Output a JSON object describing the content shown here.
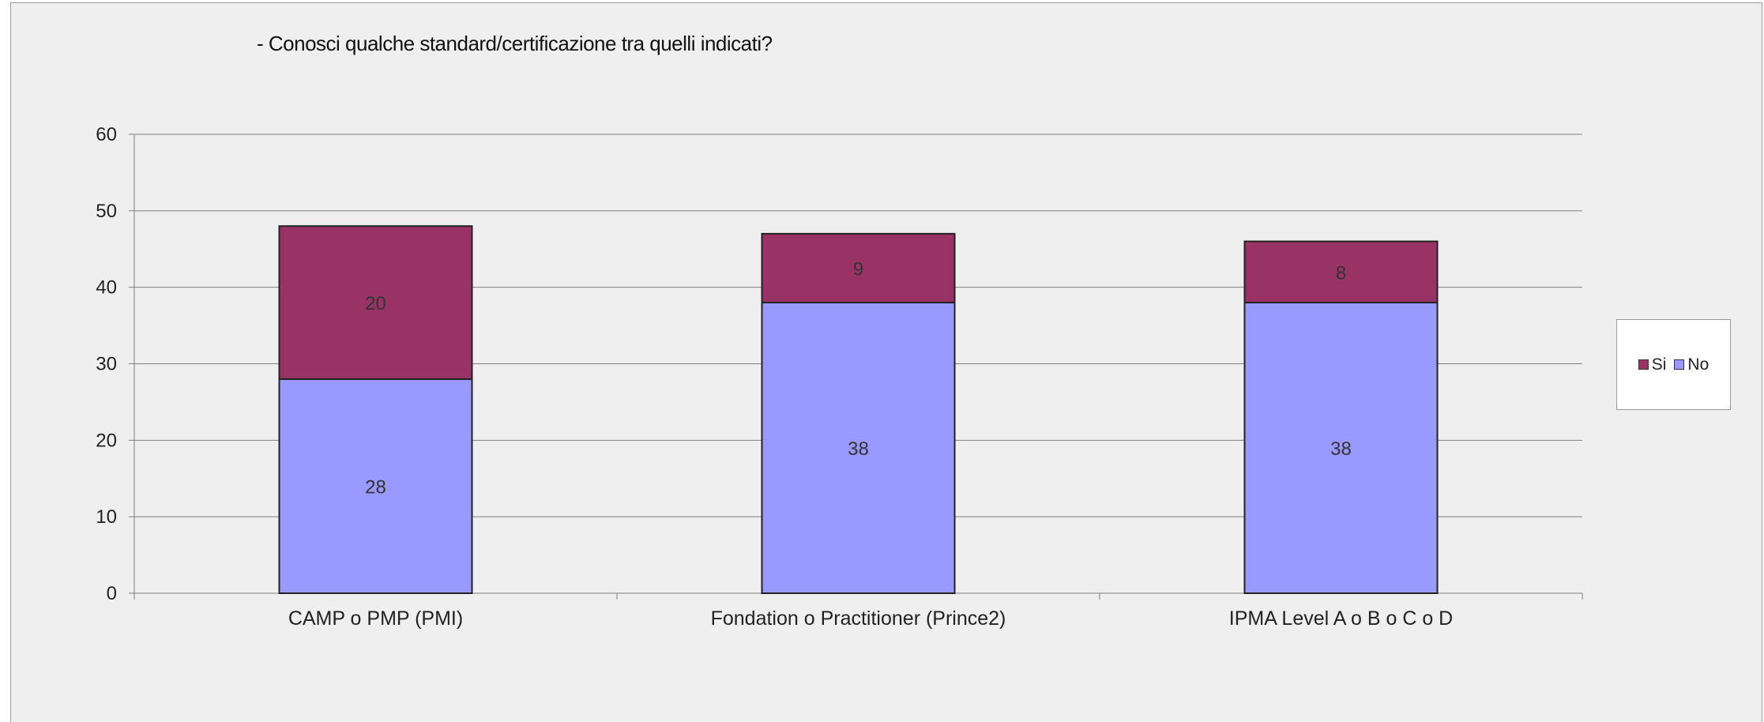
{
  "chart_data": {
    "type": "bar",
    "stacked": true,
    "title": "- Conosci qualche standard/certificazione tra quelli indicati?",
    "categories": [
      "CAMP o PMP (PMI)",
      "Fondation o Practitioner (Prince2)",
      "IPMA Level A o B o C o D"
    ],
    "series": [
      {
        "name": "No",
        "values": [
          28,
          38,
          38
        ],
        "color": "#9999ff"
      },
      {
        "name": "Si",
        "values": [
          20,
          9,
          8
        ],
        "color": "#993366"
      }
    ],
    "legend_order": [
      "Si",
      "No"
    ],
    "ylim": [
      0,
      60
    ],
    "yticks": [
      0,
      10,
      20,
      30,
      40,
      50,
      60
    ],
    "grid": true,
    "legend_position": "right",
    "data_labels": true
  }
}
